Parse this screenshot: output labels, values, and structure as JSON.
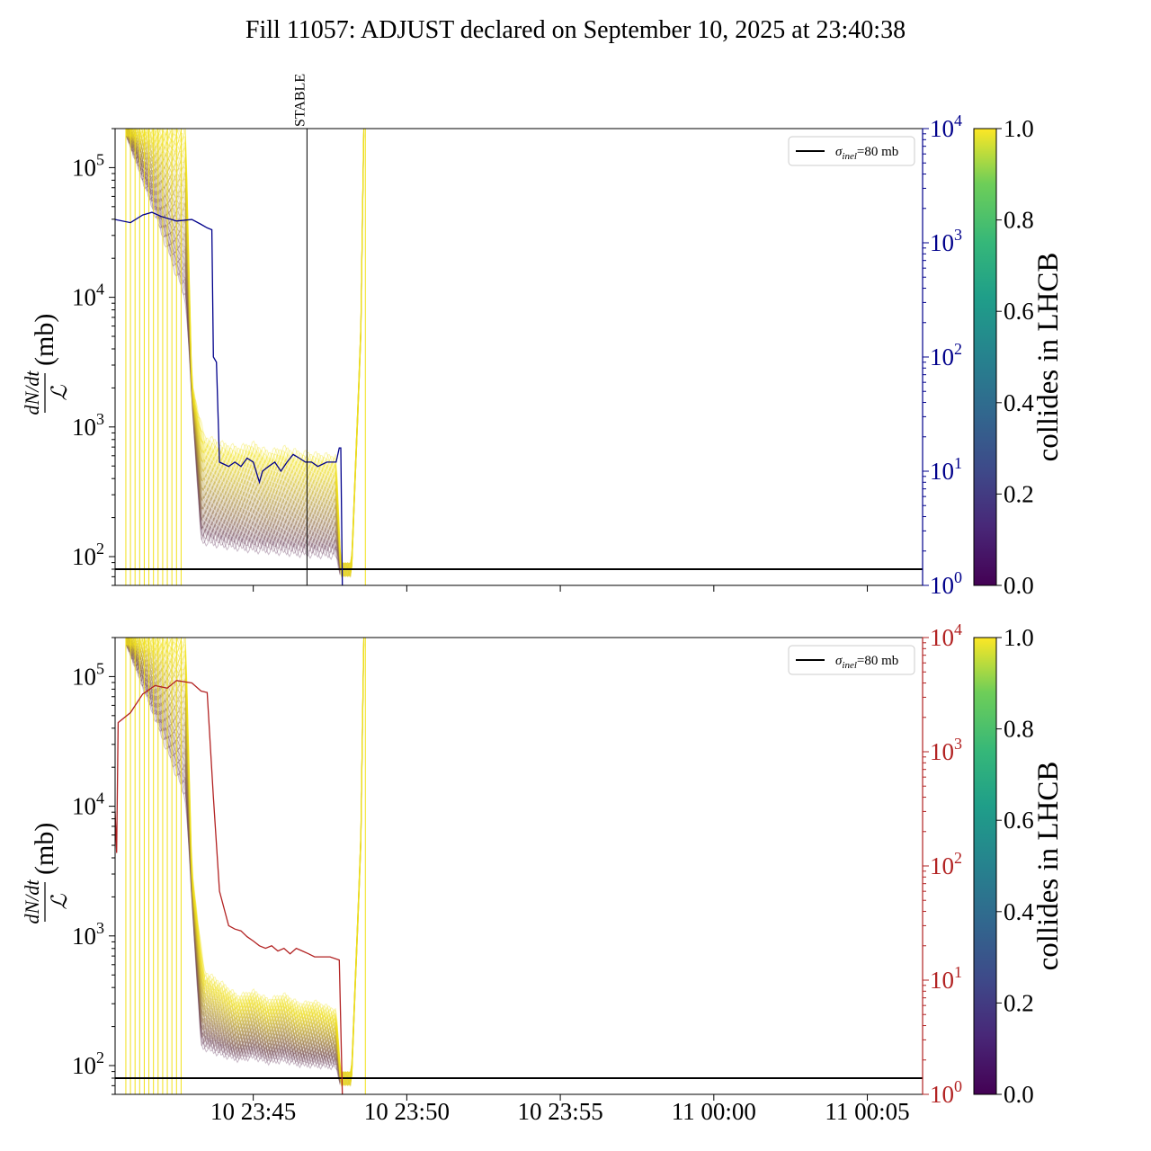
{
  "title": "Fill 11057: ADJUST declared on September 10, 2025 at 23:40:38",
  "colors": {
    "upper_right_axis": "#00008b",
    "lower_right_axis": "#b22222",
    "reference_line": "#000000",
    "bunch_high": "#f2e11a",
    "bunch_low": "#4b1a6e"
  },
  "chart_data": [
    {
      "type": "line",
      "panel": "upper",
      "ylabel_frac_num": "dN/dt",
      "ylabel_frac_den": "ℒ",
      "ylabel_unit": "(mb)",
      "yscale": "log",
      "ylim": [
        60,
        200000
      ],
      "yticks": [
        {
          "exp": "2"
        },
        {
          "exp": "3"
        },
        {
          "exp": "4"
        },
        {
          "exp": "5"
        }
      ],
      "right_axis": {
        "scale": "log",
        "ylim": [
          1,
          10000
        ],
        "ticks": [
          {
            "exp": "0"
          },
          {
            "exp": "1"
          },
          {
            "exp": "2"
          },
          {
            "exp": "3"
          },
          {
            "exp": "4"
          }
        ]
      },
      "xlim_minutes": [
        -4.5,
        21.8
      ],
      "xticks": [],
      "vline": {
        "label": "STABLE",
        "minute": 1.75
      },
      "reference_line": {
        "value": 80,
        "label_main": "σ",
        "label_sub": "inel",
        "label_rest": "=80 mb"
      },
      "right_series": [
        [
          -4.5,
          1600
        ],
        [
          -4.0,
          1500
        ],
        [
          -3.6,
          1750
        ],
        [
          -3.3,
          1850
        ],
        [
          -3.0,
          1700
        ],
        [
          -2.5,
          1550
        ],
        [
          -2.0,
          1600
        ],
        [
          -1.7,
          1450
        ],
        [
          -1.5,
          1350
        ],
        [
          -1.35,
          1300
        ],
        [
          -1.3,
          100
        ],
        [
          -1.2,
          90
        ],
        [
          -1.1,
          12
        ],
        [
          -0.8,
          11
        ],
        [
          -0.6,
          12
        ],
        [
          -0.4,
          11
        ],
        [
          -0.2,
          13
        ],
        [
          0.0,
          12
        ],
        [
          0.2,
          8
        ],
        [
          0.3,
          10
        ],
        [
          0.5,
          11
        ],
        [
          0.7,
          12
        ],
        [
          0.9,
          10
        ],
        [
          1.1,
          12
        ],
        [
          1.3,
          14
        ],
        [
          1.5,
          13
        ],
        [
          1.7,
          12
        ],
        [
          1.9,
          12
        ],
        [
          2.1,
          11
        ],
        [
          2.4,
          12
        ],
        [
          2.7,
          12
        ],
        [
          2.8,
          16
        ],
        [
          2.85,
          16
        ],
        [
          2.9,
          1
        ]
      ],
      "bunches_high": [
        [
          -4.15,
          200000
        ],
        [
          -2.2,
          200000
        ],
        [
          -2.0,
          2000
        ],
        [
          -1.6,
          800
        ],
        [
          -1.0,
          700
        ],
        [
          -0.5,
          650
        ],
        [
          0.0,
          700
        ],
        [
          0.5,
          600
        ],
        [
          1.0,
          650
        ],
        [
          1.5,
          600
        ],
        [
          2.0,
          580
        ],
        [
          2.7,
          560
        ],
        [
          2.85,
          80
        ],
        [
          3.2,
          80
        ],
        [
          3.5,
          5000
        ],
        [
          3.6,
          200000
        ]
      ],
      "bunches_low": [
        [
          -4.15,
          200000
        ],
        [
          -2.2,
          10000
        ],
        [
          -1.7,
          140
        ],
        [
          -1.0,
          130
        ],
        [
          -0.5,
          125
        ],
        [
          0.0,
          120
        ],
        [
          0.5,
          118
        ],
        [
          1.0,
          115
        ],
        [
          1.5,
          112
        ],
        [
          2.0,
          110
        ],
        [
          2.7,
          108
        ],
        [
          2.85,
          75
        ]
      ]
    },
    {
      "type": "line",
      "panel": "lower",
      "ylabel_frac_num": "dN/dt",
      "ylabel_frac_den": "ℒ",
      "ylabel_unit": "(mb)",
      "yscale": "log",
      "ylim": [
        60,
        200000
      ],
      "yticks": [
        {
          "exp": "2"
        },
        {
          "exp": "3"
        },
        {
          "exp": "4"
        },
        {
          "exp": "5"
        }
      ],
      "right_axis": {
        "scale": "log",
        "ylim": [
          1,
          10000
        ],
        "ticks": [
          {
            "exp": "0"
          },
          {
            "exp": "1"
          },
          {
            "exp": "2"
          },
          {
            "exp": "3"
          },
          {
            "exp": "4"
          }
        ]
      },
      "xlim_minutes": [
        -4.5,
        21.8
      ],
      "xticks": [
        {
          "label": "10 23:45",
          "minute": 0
        },
        {
          "label": "10 23:50",
          "minute": 5
        },
        {
          "label": "10 23:55",
          "minute": 10
        },
        {
          "label": "11 00:00",
          "minute": 15
        },
        {
          "label": "11 00:05",
          "minute": 20
        }
      ],
      "reference_line": {
        "value": 80,
        "label_main": "σ",
        "label_sub": "inel",
        "label_rest": "=80 mb"
      },
      "right_series": [
        [
          -4.5,
          300
        ],
        [
          -4.45,
          130
        ],
        [
          -4.4,
          1800
        ],
        [
          -4.0,
          2200
        ],
        [
          -3.6,
          3200
        ],
        [
          -3.2,
          3800
        ],
        [
          -2.8,
          3600
        ],
        [
          -2.5,
          4200
        ],
        [
          -2.0,
          4000
        ],
        [
          -1.7,
          3400
        ],
        [
          -1.5,
          3300
        ],
        [
          -1.3,
          400
        ],
        [
          -1.1,
          60
        ],
        [
          -0.8,
          30
        ],
        [
          -0.6,
          28
        ],
        [
          -0.4,
          27
        ],
        [
          -0.2,
          24
        ],
        [
          0.0,
          22
        ],
        [
          0.2,
          20
        ],
        [
          0.4,
          19
        ],
        [
          0.6,
          20
        ],
        [
          0.8,
          18
        ],
        [
          1.0,
          19
        ],
        [
          1.2,
          17
        ],
        [
          1.4,
          19
        ],
        [
          1.6,
          18
        ],
        [
          1.8,
          17
        ],
        [
          2.0,
          16
        ],
        [
          2.2,
          16
        ],
        [
          2.5,
          16
        ],
        [
          2.8,
          15
        ],
        [
          2.9,
          1
        ]
      ],
      "bunches_high": [
        [
          -4.15,
          200000
        ],
        [
          -2.2,
          200000
        ],
        [
          -2.0,
          3000
        ],
        [
          -1.6,
          500
        ],
        [
          -1.0,
          400
        ],
        [
          -0.5,
          320
        ],
        [
          0.0,
          350
        ],
        [
          0.5,
          300
        ],
        [
          1.0,
          330
        ],
        [
          1.5,
          280
        ],
        [
          2.0,
          290
        ],
        [
          2.7,
          250
        ],
        [
          2.85,
          80
        ],
        [
          3.2,
          80
        ],
        [
          3.5,
          5000
        ],
        [
          3.6,
          200000
        ]
      ],
      "bunches_low": [
        [
          -4.15,
          200000
        ],
        [
          -2.2,
          12000
        ],
        [
          -1.7,
          150
        ],
        [
          -1.0,
          130
        ],
        [
          -0.5,
          120
        ],
        [
          0.0,
          125
        ],
        [
          0.5,
          115
        ],
        [
          1.0,
          118
        ],
        [
          1.5,
          110
        ],
        [
          2.0,
          108
        ],
        [
          2.7,
          105
        ],
        [
          2.85,
          75
        ]
      ]
    }
  ],
  "colorbars": [
    {
      "label": "collides in LHCB",
      "ticks": [
        "0.0",
        "0.2",
        "0.4",
        "0.6",
        "0.8",
        "1.0"
      ]
    },
    {
      "label": "collides in LHCB",
      "ticks": [
        "0.0",
        "0.2",
        "0.4",
        "0.6",
        "0.8",
        "1.0"
      ]
    }
  ]
}
